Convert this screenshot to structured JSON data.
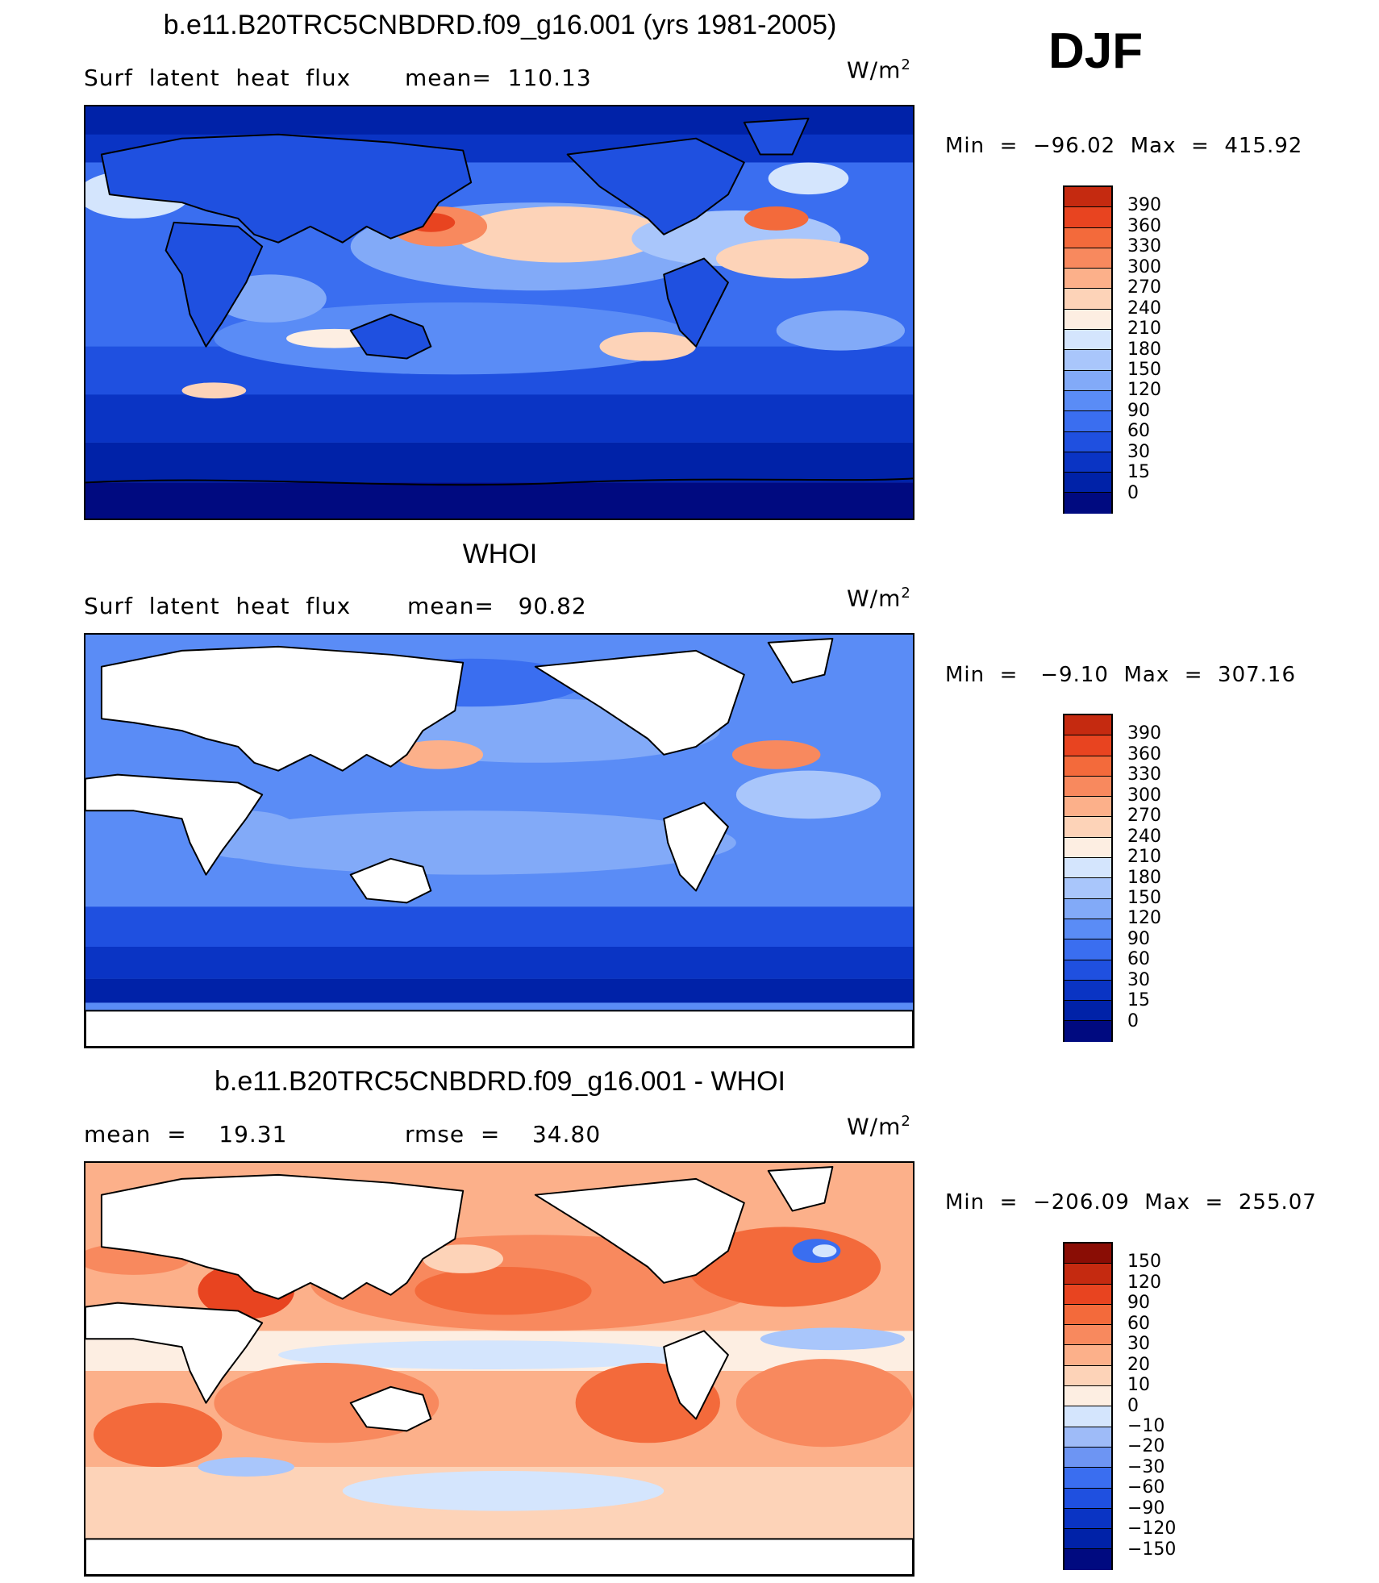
{
  "season": "DJF",
  "colors": {
    "bg_land": "#ffffff",
    "coast": "#000000",
    "abs_scale": [
      "#000a80",
      "#0022a8",
      "#0a34c4",
      "#1f50e0",
      "#3a6ef0",
      "#5a8cf6",
      "#82aaf8",
      "#a9c6fb",
      "#d4e5fd",
      "#fdeee2",
      "#fdd3b8",
      "#fcb08a",
      "#f8895e",
      "#f36a3b",
      "#e84420",
      "#c52a10",
      "#8a0d05"
    ],
    "diff_scale": [
      "#000a80",
      "#0022a8",
      "#0a34c4",
      "#1f50e0",
      "#3a6ef0",
      "#6d95f3",
      "#9ebbf8",
      "#d4e5fd",
      "#fdeee2",
      "#fdd3b8",
      "#fcb08a",
      "#f8895e",
      "#f36a3b",
      "#e84420",
      "#c52a10",
      "#8a0d05"
    ]
  },
  "panel1": {
    "title": "b.e11.B20TRC5CNBDRD.f09_g16.001 (yrs 1981-2005)",
    "left_label": "Surf  latent  heat  flux",
    "mean_label": "mean=  110.13",
    "units": "W/m",
    "units_sup": "2",
    "minmax": "Min  =  −96.02  Max  =  415.92",
    "ticks": [
      "390",
      "360",
      "330",
      "300",
      "270",
      "240",
      "210",
      "180",
      "150",
      "120",
      "90",
      "60",
      "30",
      "15",
      "0"
    ]
  },
  "panel2": {
    "title": "WHOI",
    "left_label": "Surf  latent  heat  flux",
    "mean_label": "mean=   90.82",
    "units": "W/m",
    "units_sup": "2",
    "minmax": "Min  =   −9.10  Max  =  307.16",
    "ticks": [
      "390",
      "360",
      "330",
      "300",
      "270",
      "240",
      "210",
      "180",
      "150",
      "120",
      "90",
      "60",
      "30",
      "15",
      "0"
    ]
  },
  "panel3": {
    "title": "b.e11.B20TRC5CNBDRD.f09_g16.001 - WHOI",
    "left_label": "mean  =    19.31",
    "mean_label": "rmse  =    34.80",
    "units": "W/m",
    "units_sup": "2",
    "minmax": "Min  =  −206.09  Max  =  255.07",
    "ticks": [
      "150",
      "120",
      "90",
      "60",
      "30",
      "20",
      "10",
      "0",
      "−10",
      "−20",
      "−30",
      "−60",
      "−90",
      "−120",
      "−150"
    ]
  }
}
